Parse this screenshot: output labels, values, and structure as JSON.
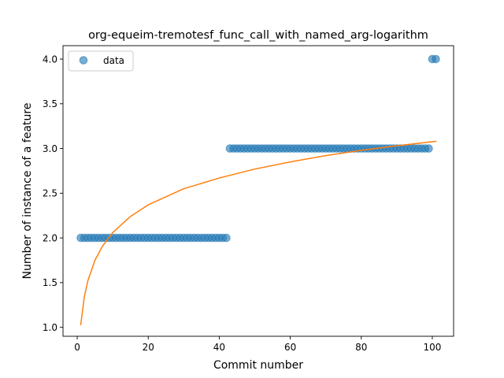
{
  "chart_data": {
    "type": "scatter",
    "title": "org-equeim-tremotesf_func_call_with_named_arg-logarithm",
    "xlabel": "Commit number",
    "ylabel": "Number of instance of a feature",
    "xlim": [
      -4,
      106
    ],
    "ylim": [
      0.9,
      4.15
    ],
    "xticks": [
      0,
      20,
      40,
      60,
      80,
      100
    ],
    "yticks": [
      1.0,
      1.5,
      2.0,
      2.5,
      3.0,
      3.5,
      4.0
    ],
    "xtick_labels": [
      "0",
      "20",
      "40",
      "60",
      "80",
      "100"
    ],
    "ytick_labels": [
      "1.0",
      "1.5",
      "2.0",
      "2.5",
      "3.0",
      "3.5",
      "4.0"
    ],
    "grid": false,
    "legend": {
      "position": "top-left",
      "entries": [
        "data"
      ]
    },
    "series": [
      {
        "name": "data",
        "kind": "scatter",
        "color": "#1f77b4",
        "points": [
          [
            1,
            2
          ],
          [
            2,
            2
          ],
          [
            3,
            2
          ],
          [
            4,
            2
          ],
          [
            5,
            2
          ],
          [
            6,
            2
          ],
          [
            7,
            2
          ],
          [
            8,
            2
          ],
          [
            9,
            2
          ],
          [
            10,
            2
          ],
          [
            11,
            2
          ],
          [
            12,
            2
          ],
          [
            13,
            2
          ],
          [
            14,
            2
          ],
          [
            15,
            2
          ],
          [
            16,
            2
          ],
          [
            17,
            2
          ],
          [
            18,
            2
          ],
          [
            19,
            2
          ],
          [
            20,
            2
          ],
          [
            21,
            2
          ],
          [
            22,
            2
          ],
          [
            23,
            2
          ],
          [
            24,
            2
          ],
          [
            25,
            2
          ],
          [
            26,
            2
          ],
          [
            27,
            2
          ],
          [
            28,
            2
          ],
          [
            29,
            2
          ],
          [
            30,
            2
          ],
          [
            31,
            2
          ],
          [
            32,
            2
          ],
          [
            33,
            2
          ],
          [
            34,
            2
          ],
          [
            35,
            2
          ],
          [
            36,
            2
          ],
          [
            37,
            2
          ],
          [
            38,
            2
          ],
          [
            39,
            2
          ],
          [
            40,
            2
          ],
          [
            41,
            2
          ],
          [
            42,
            2
          ],
          [
            43,
            3
          ],
          [
            44,
            3
          ],
          [
            45,
            3
          ],
          [
            46,
            3
          ],
          [
            47,
            3
          ],
          [
            48,
            3
          ],
          [
            49,
            3
          ],
          [
            50,
            3
          ],
          [
            51,
            3
          ],
          [
            52,
            3
          ],
          [
            53,
            3
          ],
          [
            54,
            3
          ],
          [
            55,
            3
          ],
          [
            56,
            3
          ],
          [
            57,
            3
          ],
          [
            58,
            3
          ],
          [
            59,
            3
          ],
          [
            60,
            3
          ],
          [
            61,
            3
          ],
          [
            62,
            3
          ],
          [
            63,
            3
          ],
          [
            64,
            3
          ],
          [
            65,
            3
          ],
          [
            66,
            3
          ],
          [
            67,
            3
          ],
          [
            68,
            3
          ],
          [
            69,
            3
          ],
          [
            70,
            3
          ],
          [
            71,
            3
          ],
          [
            72,
            3
          ],
          [
            73,
            3
          ],
          [
            74,
            3
          ],
          [
            75,
            3
          ],
          [
            76,
            3
          ],
          [
            77,
            3
          ],
          [
            78,
            3
          ],
          [
            79,
            3
          ],
          [
            80,
            3
          ],
          [
            81,
            3
          ],
          [
            82,
            3
          ],
          [
            83,
            3
          ],
          [
            84,
            3
          ],
          [
            85,
            3
          ],
          [
            86,
            3
          ],
          [
            87,
            3
          ],
          [
            88,
            3
          ],
          [
            89,
            3
          ],
          [
            90,
            3
          ],
          [
            91,
            3
          ],
          [
            92,
            3
          ],
          [
            93,
            3
          ],
          [
            94,
            3
          ],
          [
            95,
            3
          ],
          [
            96,
            3
          ],
          [
            97,
            3
          ],
          [
            98,
            3
          ],
          [
            99,
            3
          ],
          [
            100,
            4
          ],
          [
            101,
            4
          ]
        ]
      },
      {
        "kind": "line",
        "color": "#ff7f0e",
        "x": [
          1,
          2,
          3,
          5,
          7,
          10,
          15,
          20,
          30,
          40,
          50,
          60,
          70,
          80,
          90,
          101
        ],
        "y": [
          1.03,
          1.34,
          1.52,
          1.75,
          1.9,
          2.06,
          2.24,
          2.37,
          2.55,
          2.67,
          2.77,
          2.85,
          2.92,
          2.98,
          3.03,
          3.08
        ]
      }
    ]
  }
}
